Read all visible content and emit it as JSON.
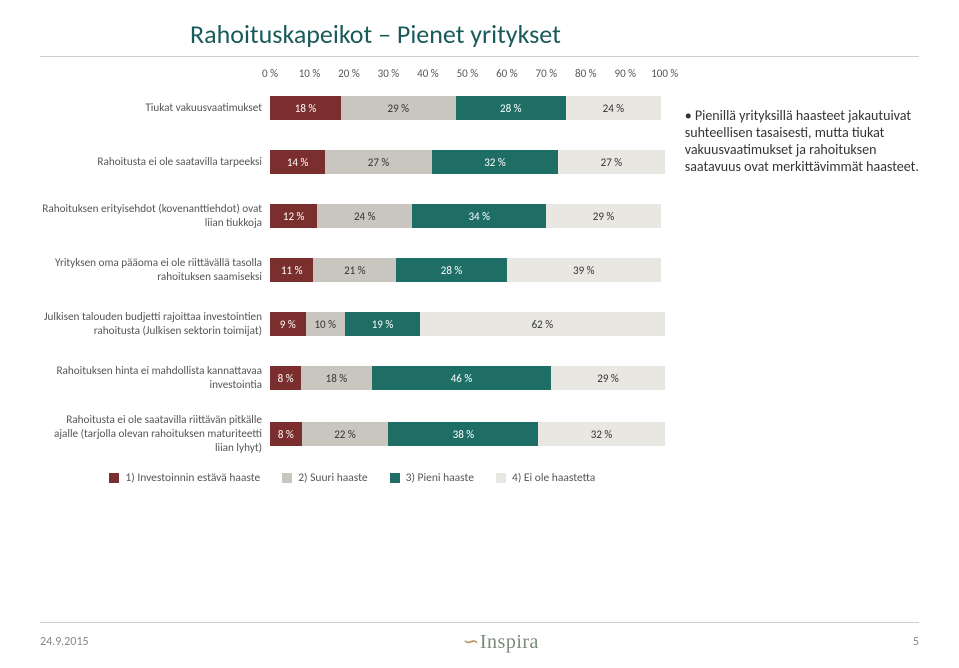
{
  "title": "Rahoituskapeikot – Pienet yritykset",
  "side_text": "Pienillä yrityksillä haasteet jakautuivat suhteellisen tasaisesti, mutta tiukat vakuusvaatimukset ja rahoituksen saatavuus ovat merkittävimmät haasteet.",
  "chart": {
    "type": "stacked-bar-horizontal",
    "xlim": [
      0,
      100
    ],
    "xtick_step": 10,
    "xtick_suffix": " %",
    "label_fontsize": 11,
    "background_color": "#ffffff",
    "series": [
      {
        "name": "1) Investoinnin estävä haaste",
        "color": "#7a2e2e",
        "text_color": "#ffffff"
      },
      {
        "name": "2) Suuri haaste",
        "color": "#c9c6bf",
        "text_color": "#333333"
      },
      {
        "name": "3) Pieni haaste",
        "color": "#1e6e66",
        "text_color": "#ffffff"
      },
      {
        "name": "4) Ei ole haastetta",
        "color": "#e9e7e2",
        "text_color": "#333333"
      }
    ],
    "categories": [
      {
        "label": "Tiukat vakuusvaatimukset",
        "values": [
          18,
          29,
          28,
          24
        ]
      },
      {
        "label": "Rahoitusta ei ole saatavilla tarpeeksi",
        "values": [
          14,
          27,
          32,
          27
        ]
      },
      {
        "label": "Rahoituksen erityisehdot (kovenanttiehdot) ovat liian tiukkoja",
        "values": [
          12,
          24,
          34,
          29
        ]
      },
      {
        "label": "Yrityksen oma pääoma ei ole riittävällä tasolla rahoituksen saamiseksi",
        "values": [
          11,
          21,
          28,
          39
        ]
      },
      {
        "label": "Julkisen talouden budjetti rajoittaa investointien rahoitusta (Julkisen sektorin toimijat)",
        "values": [
          9,
          10,
          19,
          62
        ]
      },
      {
        "label": "Rahoituksen hinta ei mahdollista kannattavaa investointia",
        "values": [
          8,
          18,
          46,
          29
        ]
      },
      {
        "label": "Rahoitusta ei ole saatavilla riittävän pitkälle ajalle (tarjolla olevan rahoituksen maturiteetti liian lyhyt)",
        "values": [
          8,
          22,
          38,
          32
        ]
      }
    ]
  },
  "footer": {
    "date": "24.9.2015",
    "logo_text": "Inspira",
    "page_number": "5"
  }
}
